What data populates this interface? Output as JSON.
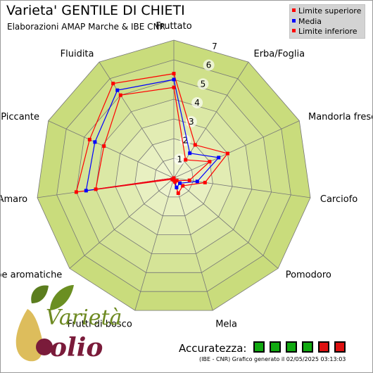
{
  "title": "Varieta' GENTILE DI CHIETI",
  "subtitle": "Elaborazioni AMAP Marche & IBE CNR",
  "legend": [
    {
      "label": "Limite superiore",
      "color": "#ff0000"
    },
    {
      "label": "Media",
      "color": "#0000ff"
    },
    {
      "label": "Limite inferiore",
      "color": "#ff0000"
    }
  ],
  "accuracy": {
    "label": "Accuratezza:",
    "boxes": [
      "#11aa11",
      "#11aa11",
      "#11aa11",
      "#11aa11",
      "#dd1111",
      "#dd1111"
    ]
  },
  "footer": "(IBE - CNR) Grafico generato il 02/05/2025 03:13:03",
  "logo": {
    "line1": "Varietà",
    "line2": "olio"
  },
  "chart_data": {
    "type": "radar",
    "categories": [
      "Fruttato",
      "Erba/Foglia",
      "Mandorla fresca",
      "Carciofo",
      "Pomodoro",
      "Mela",
      "Frutti di bosco",
      "Erbe aromatiche",
      "Amaro",
      "Piccante",
      "Fluidita"
    ],
    "rlim": [
      0,
      7
    ],
    "ticks": [
      "1",
      "2",
      "3",
      "4",
      "5",
      "6",
      "7"
    ],
    "series": [
      {
        "name": "Limite superiore",
        "color": "#ff0000",
        "values": [
          5.3,
          2.0,
          3.0,
          1.6,
          0.6,
          0.8,
          0.1,
          0.1,
          5.0,
          4.7,
          5.7
        ]
      },
      {
        "name": "Media",
        "color": "#0000ff",
        "values": [
          5.0,
          1.5,
          2.5,
          1.2,
          0.4,
          0.5,
          0.0,
          0.0,
          4.5,
          4.4,
          5.3
        ]
      },
      {
        "name": "Limite inferiore",
        "color": "#ff0000",
        "values": [
          4.6,
          1.1,
          2.0,
          0.8,
          0.2,
          0.2,
          0.0,
          0.0,
          4.0,
          3.9,
          5.0
        ]
      }
    ],
    "colors": {
      "outer": "#c9dc7c",
      "inner": "#f4f8dc",
      "grid": "#777777"
    }
  }
}
